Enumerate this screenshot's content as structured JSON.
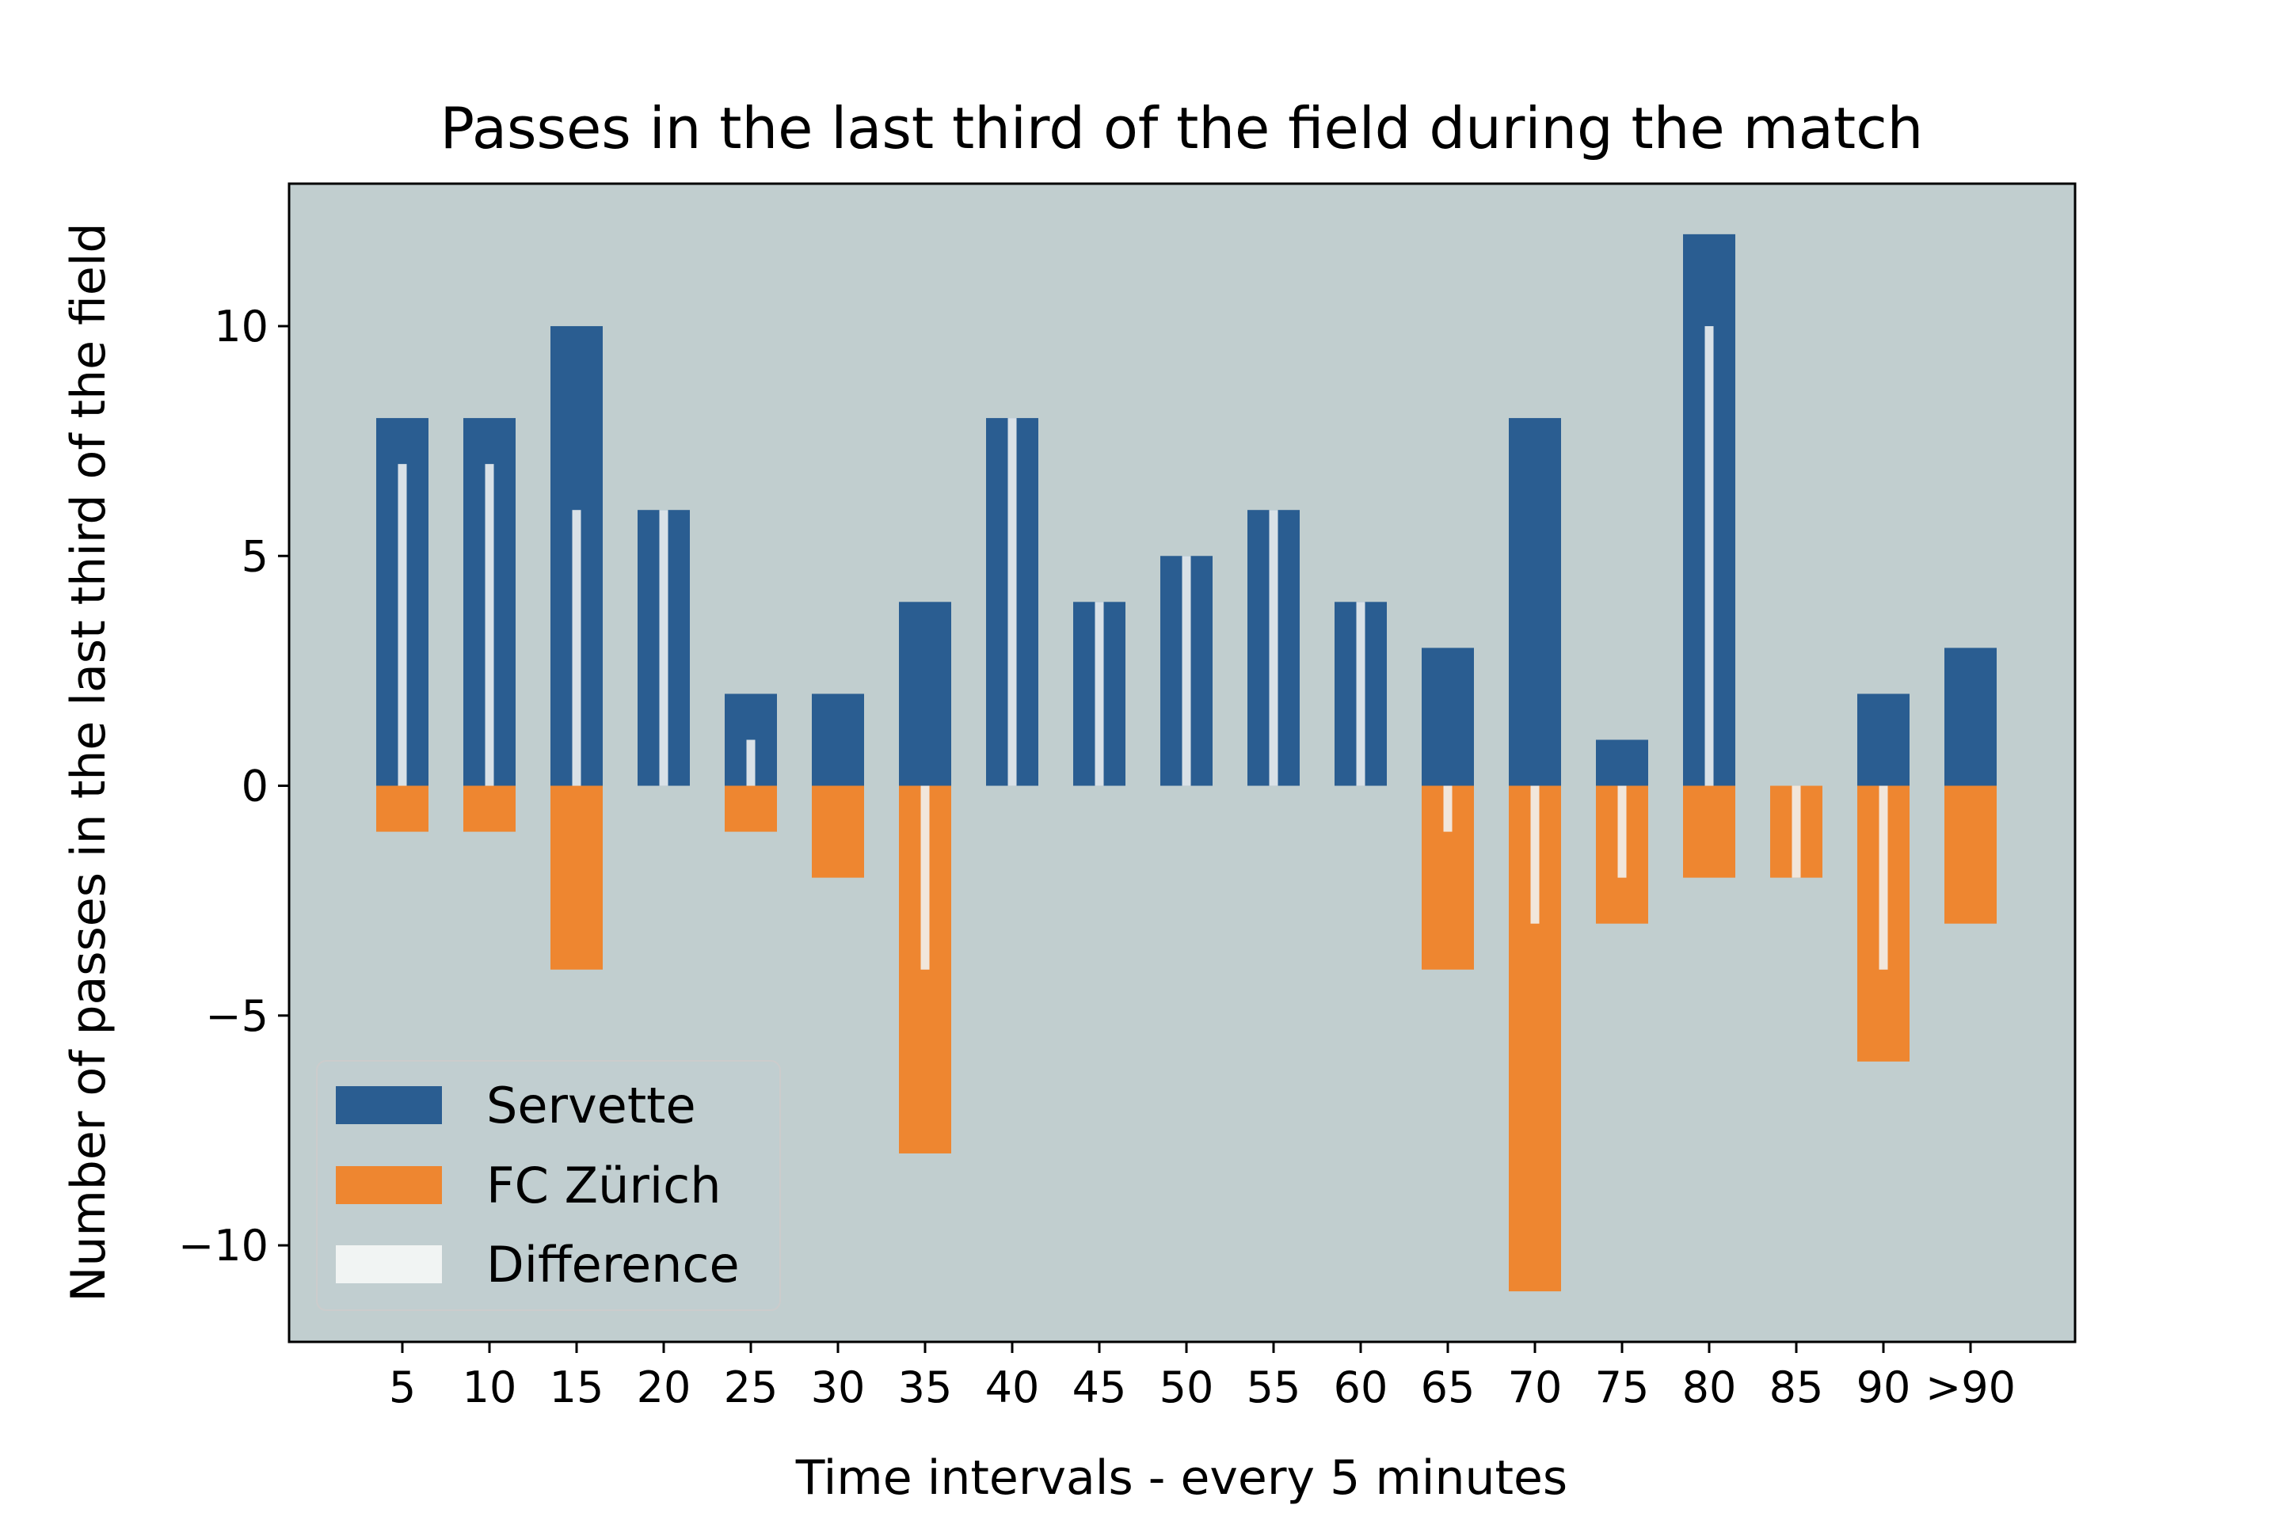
{
  "chart_data": {
    "type": "bar",
    "title": "Passes in the last third of the field during the match",
    "xlabel": "Time intervals - every 5 minutes",
    "ylabel": "Number of passes in the last third of the field",
    "categories": [
      "5",
      "10",
      "15",
      "20",
      "25",
      "30",
      "35",
      "40",
      "45",
      "50",
      "55",
      "60",
      "65",
      "70",
      "75",
      "80",
      "85",
      "90",
      ">90"
    ],
    "series": [
      {
        "name": "Servette",
        "color": "#2a5d91",
        "values": [
          8,
          8,
          10,
          6,
          2,
          2,
          4,
          8,
          4,
          5,
          6,
          4,
          3,
          8,
          1,
          12,
          0,
          2,
          3
        ]
      },
      {
        "name": "FC Zürich",
        "color": "#ee8630",
        "values": [
          -1,
          -1,
          -4,
          0,
          -1,
          -2,
          -8,
          0,
          0,
          0,
          0,
          0,
          -4,
          -11,
          -3,
          -2,
          -2,
          -6,
          -3
        ]
      },
      {
        "name": "Difference",
        "color": "#f1f4f3",
        "values": [
          7,
          7,
          6,
          6,
          1,
          0,
          -4,
          8,
          4,
          5,
          6,
          4,
          -1,
          -3,
          -2,
          10,
          -2,
          -4,
          0
        ]
      }
    ],
    "yticks": [
      -10,
      -5,
      0,
      5,
      10
    ],
    "ytick_labels": [
      "−10",
      "−5",
      "0",
      "5",
      "10"
    ],
    "ylim": [
      -12.1,
      13.1
    ],
    "xlim": [
      -1.3,
      19.2
    ],
    "plot_background": "#c1cecf",
    "grid": false,
    "legend_position": "lower-left"
  }
}
